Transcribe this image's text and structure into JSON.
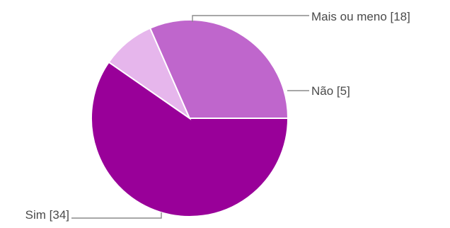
{
  "chart_data": {
    "type": "pie",
    "slices": [
      {
        "label": "Sim [34]",
        "value": 34,
        "color": "#990099"
      },
      {
        "label": "Não [5]",
        "value": 5,
        "color": "#e6b6ec"
      },
      {
        "label": "Mais ou meno [18]",
        "value": 18,
        "color": "#bf66cc"
      }
    ],
    "title": "",
    "legend": "none"
  }
}
